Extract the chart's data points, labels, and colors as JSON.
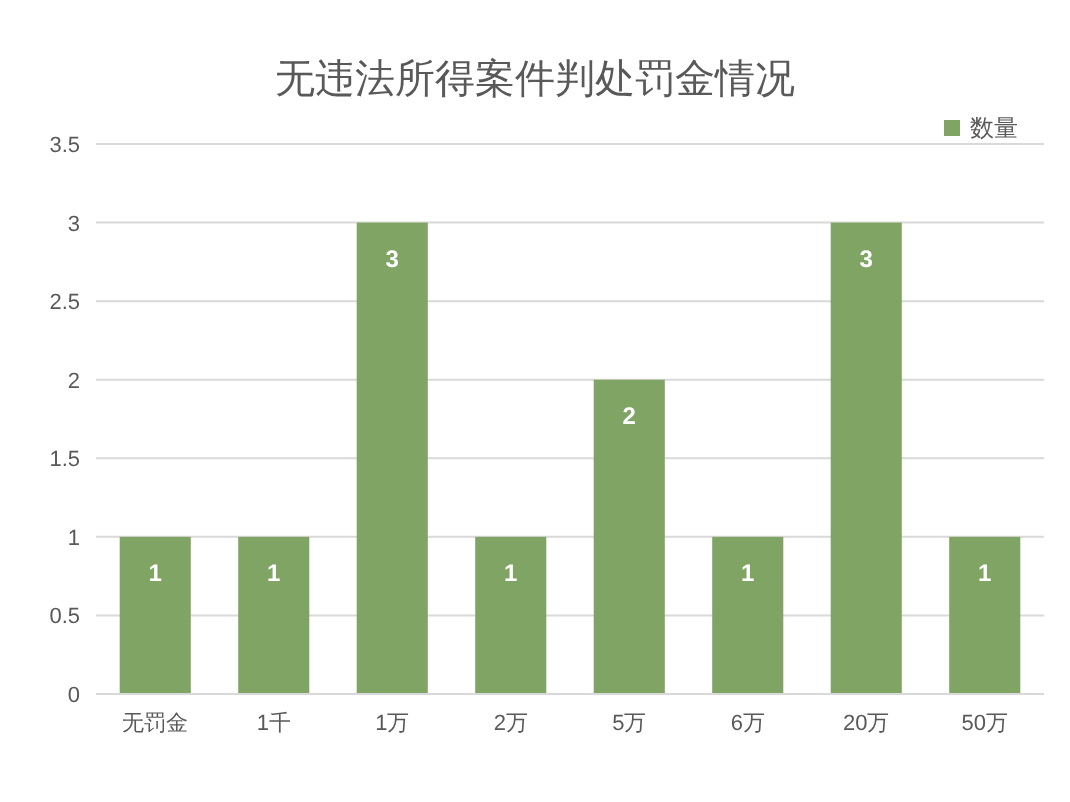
{
  "chart_data": {
    "type": "bar",
    "title": "无违法所得案件判处罚金情况",
    "categories": [
      "无罚金",
      "1千",
      "1万",
      "2万",
      "5万",
      "6万",
      "20万",
      "50万"
    ],
    "series": [
      {
        "name": "数量",
        "color": "#7fa464",
        "values": [
          1,
          1,
          3,
          1,
          2,
          1,
          3,
          1
        ]
      }
    ],
    "ylim": [
      0,
      3.5
    ],
    "yticks": [
      0,
      0.5,
      1,
      1.5,
      2,
      2.5,
      3,
      3.5
    ],
    "grid": "y",
    "legend": "top right",
    "data_labels": true
  }
}
